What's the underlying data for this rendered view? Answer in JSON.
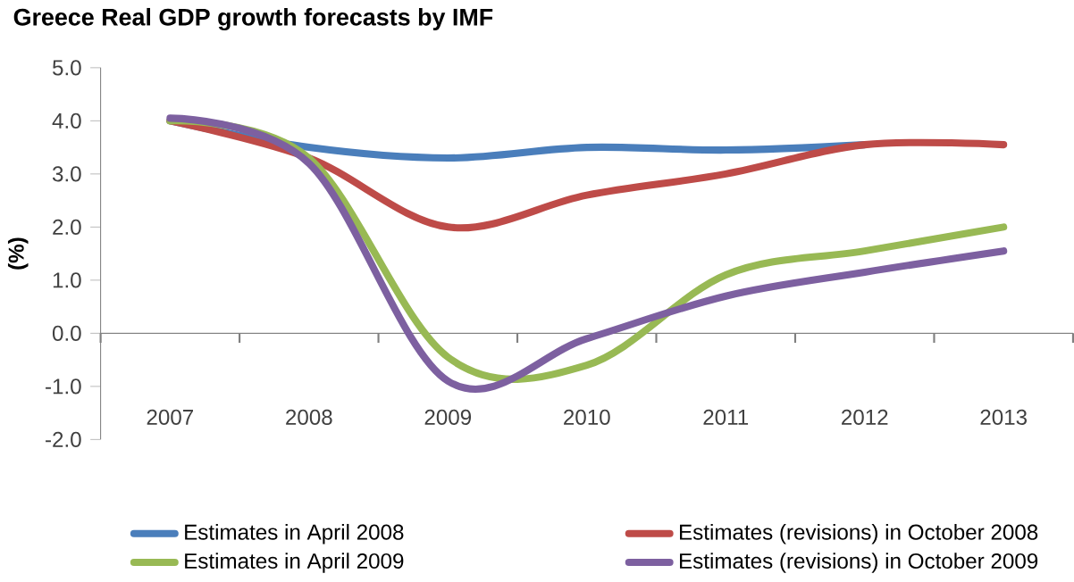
{
  "chart_data": {
    "type": "line",
    "title": "Greece Real GDP growth forecasts by IMF",
    "ylabel": "(%)",
    "categories": [
      "2007",
      "2008",
      "2009",
      "2010",
      "2011",
      "2012",
      "2013"
    ],
    "series": [
      {
        "name": "Estimates in April 2008",
        "color": "#4a7ebb",
        "values": [
          4.0,
          3.5,
          3.3,
          3.5,
          3.45,
          3.55,
          null
        ]
      },
      {
        "name": "Estimates (revisions) in October 2008",
        "color": "#be4b48",
        "values": [
          4.0,
          3.3,
          2.0,
          2.6,
          3.0,
          3.55,
          3.55
        ]
      },
      {
        "name": "Estimates in April 2009",
        "color": "#98b954",
        "values": [
          4.0,
          3.3,
          -0.45,
          -0.6,
          1.1,
          1.55,
          2.0
        ]
      },
      {
        "name": "Estimates (revisions) in October 2009",
        "color": "#7d60a0",
        "values": [
          4.05,
          3.2,
          -0.9,
          -0.1,
          0.7,
          1.15,
          1.55
        ]
      }
    ],
    "ylim": [
      -2,
      5
    ],
    "yticks": [
      {
        "value": -2,
        "label": "-2.0"
      },
      {
        "value": -1,
        "label": "-1.0"
      },
      {
        "value": 0,
        "label": "0.0"
      },
      {
        "value": 1,
        "label": "1.0"
      },
      {
        "value": 2,
        "label": "2.0"
      },
      {
        "value": 3,
        "label": "3.0"
      },
      {
        "value": 4,
        "label": "4.0"
      },
      {
        "value": 5,
        "label": "5.0"
      }
    ],
    "legend": "bottom",
    "marker": "none",
    "line_style": "solid"
  }
}
